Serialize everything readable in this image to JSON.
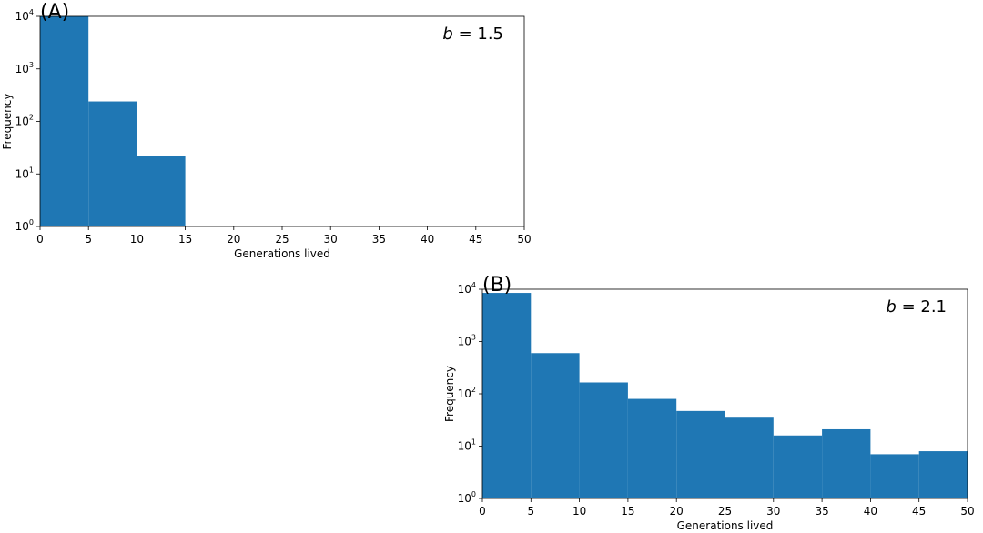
{
  "chart_data": [
    {
      "panel_label": "(A)",
      "type": "bar",
      "annotation_var": "b",
      "annotation_rest": " = 1.5",
      "xlabel": "Generations lived",
      "ylabel": "Frequency",
      "xlim": [
        0,
        50
      ],
      "ylim": [
        1,
        10000
      ],
      "yscale": "log",
      "grid": false,
      "x_ticks": [
        0,
        5,
        10,
        15,
        20,
        25,
        30,
        35,
        40,
        45,
        50
      ],
      "y_ticks": [
        {
          "base": "10",
          "exp": "0"
        },
        {
          "base": "10",
          "exp": "1"
        },
        {
          "base": "10",
          "exp": "2"
        },
        {
          "base": "10",
          "exp": "3"
        },
        {
          "base": "10",
          "exp": "4"
        }
      ],
      "bin_edges": [
        0,
        5,
        10,
        15
      ],
      "counts": [
        10000,
        240,
        22
      ],
      "bar_color": "#1f77b4"
    },
    {
      "panel_label": "(B)",
      "type": "bar",
      "annotation_var": "b",
      "annotation_rest": " = 2.1",
      "xlabel": "Generations lived",
      "ylabel": "Frequency",
      "xlim": [
        0,
        50
      ],
      "ylim": [
        1,
        10000
      ],
      "yscale": "log",
      "grid": false,
      "x_ticks": [
        0,
        5,
        10,
        15,
        20,
        25,
        30,
        35,
        40,
        45,
        50
      ],
      "y_ticks": [
        {
          "base": "10",
          "exp": "0"
        },
        {
          "base": "10",
          "exp": "1"
        },
        {
          "base": "10",
          "exp": "2"
        },
        {
          "base": "10",
          "exp": "3"
        },
        {
          "base": "10",
          "exp": "4"
        }
      ],
      "bin_edges": [
        0,
        5,
        10,
        15,
        20,
        25,
        30,
        35,
        40,
        45,
        50
      ],
      "counts": [
        8500,
        600,
        165,
        80,
        47,
        35,
        16,
        21,
        7,
        8
      ],
      "bar_color": "#1f77b4"
    }
  ]
}
